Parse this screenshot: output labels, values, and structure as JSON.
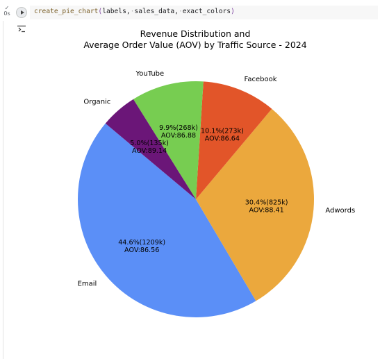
{
  "cell": {
    "status_check": "✓",
    "status_time": "0s",
    "code": {
      "function": "create_pie_chart",
      "args": [
        "labels",
        "sales_data",
        "exact_colors"
      ]
    }
  },
  "colors": {
    "Email": "#5b8ff7",
    "Adwords": "#eba83d",
    "Facebook": "#e25529",
    "YouTube": "#77cd51",
    "Organic": "#6b1678"
  },
  "chart_data": {
    "type": "pie",
    "title": [
      "Revenue Distribution and",
      "Average Order Value (AOV) by Traffic Source - 2024"
    ],
    "start_angle_deg": 140,
    "direction": "counterclockwise",
    "slices": [
      {
        "label": "Email",
        "percent": 44.6,
        "value_k": 1209,
        "pct_text": "44.6%(1209k)",
        "aov_text": "AOV:86.56",
        "color": "#5b8ff7"
      },
      {
        "label": "Adwords",
        "percent": 30.4,
        "value_k": 825,
        "pct_text": "30.4%(825k)",
        "aov_text": "AOV:88.41",
        "color": "#eba83d"
      },
      {
        "label": "Facebook",
        "percent": 10.1,
        "value_k": 273,
        "pct_text": "10.1%(273k)",
        "aov_text": "AOV:86.64",
        "color": "#e25529"
      },
      {
        "label": "YouTube",
        "percent": 9.9,
        "value_k": 268,
        "pct_text": "9.9%(268k)",
        "aov_text": "AOV:86.88",
        "color": "#77cd51"
      },
      {
        "label": "Organic",
        "percent": 5.0,
        "value_k": 135,
        "pct_text": "5.0%(135k)",
        "aov_text": "AOV:89.14",
        "color": "#6b1678"
      }
    ]
  }
}
